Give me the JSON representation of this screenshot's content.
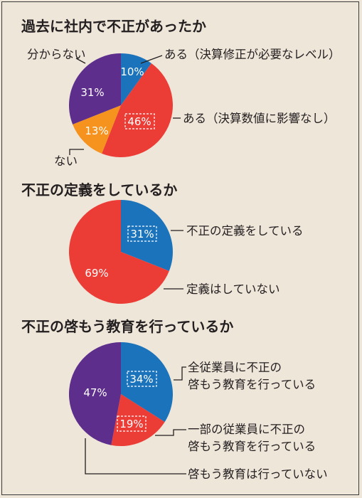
{
  "colors": {
    "blue": "#1b74bb",
    "red": "#ec3c36",
    "orange": "#f6921e",
    "purple": "#5d2e8c"
  },
  "chart_data": [
    {
      "type": "pie",
      "title": "過去に社内で不正があったか",
      "slices": [
        {
          "label": "ある（決算修正が必要なレベル）",
          "value": 10,
          "value_label": "10%",
          "color": "#1b74bb"
        },
        {
          "label": "ある（決算数値に影響なし）",
          "value": 46,
          "value_label": "46%",
          "color": "#ec3c36",
          "highlighted": true
        },
        {
          "label": "ない",
          "value": 13,
          "value_label": "13%",
          "color": "#f6921e"
        },
        {
          "label": "分からない",
          "value": 31,
          "value_label": "31%",
          "color": "#5d2e8c"
        }
      ]
    },
    {
      "type": "pie",
      "title": "不正の定義をしているか",
      "slices": [
        {
          "label": "不正の定義をしている",
          "value": 31,
          "value_label": "31%",
          "color": "#1b74bb",
          "highlighted": true
        },
        {
          "label": "定義はしていない",
          "value": 69,
          "value_label": "69%",
          "color": "#ec3c36"
        }
      ]
    },
    {
      "type": "pie",
      "title": "不正の啓もう教育を行っているか",
      "slices": [
        {
          "label": "全従業員に不正の啓もう教育を行っている",
          "label_lines": [
            "全従業員に不正の",
            "啓もう教育を行っている"
          ],
          "value": 34,
          "value_label": "34%",
          "color": "#1b74bb",
          "highlighted": true
        },
        {
          "label": "一部の従業員に不正の啓もう教育を行っている",
          "label_lines": [
            "一部の従業員に不正の",
            "啓もう教育を行っている"
          ],
          "value": 19,
          "value_label": "19%",
          "color": "#ec3c36",
          "highlighted": true
        },
        {
          "label": "啓もう教育は行っていない",
          "value": 47,
          "value_label": "47%",
          "color": "#5d2e8c"
        }
      ]
    }
  ]
}
